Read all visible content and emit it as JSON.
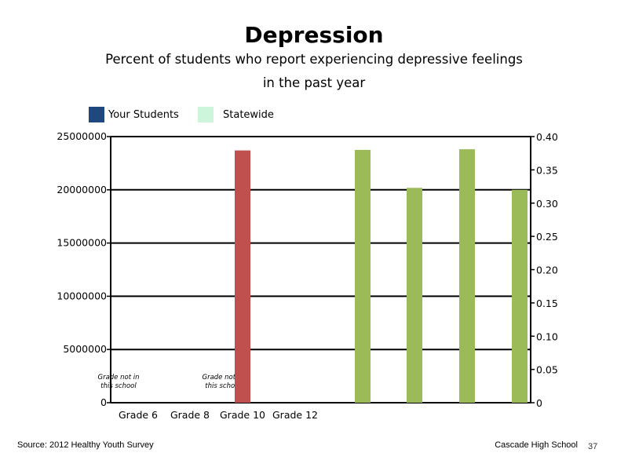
{
  "header": {
    "title": "Depression",
    "subtitle_line1": "Percent of students who report experiencing depressive feelings",
    "subtitle_line2": "in the past year"
  },
  "legend": [
    {
      "label": "Your Students",
      "color": "#1f497d"
    },
    {
      "label": "Statewide",
      "color": "#ccf5dc"
    }
  ],
  "footer": {
    "source": "Source: 2012 Healthy Youth Survey",
    "school": "Cascade High School",
    "page": "37"
  },
  "chart_data": {
    "type": "bar",
    "categories": [
      "Grade 6",
      "Grade 8",
      "Grade 10",
      "Grade 12"
    ],
    "left_axis": {
      "ylim": [
        0,
        25000000
      ],
      "ticks": [
        "25000000",
        "20000000",
        "15000000",
        "10000000",
        "5000000",
        "0"
      ]
    },
    "right_axis": {
      "ylim": [
        0,
        0.4
      ],
      "ticks": [
        "0.40",
        "0.35",
        "0.30",
        "0.25",
        "0.20",
        "0.15",
        "0.10",
        "0.05",
        "0"
      ]
    },
    "grid": true,
    "annotations": [
      {
        "text_line1": "Grade not in",
        "text_line2": "this school",
        "category": "Grade 6"
      },
      {
        "text_line1": "Grade not in",
        "text_line2": "this school",
        "category": "Grade 10"
      }
    ],
    "left_series": [
      {
        "category": "Grade 10",
        "value": 23700000,
        "color": "#c0504d"
      }
    ],
    "right_series": {
      "color": "#9bbb59",
      "values": [
        0.38,
        0.323,
        0.381,
        0.32
      ]
    }
  }
}
